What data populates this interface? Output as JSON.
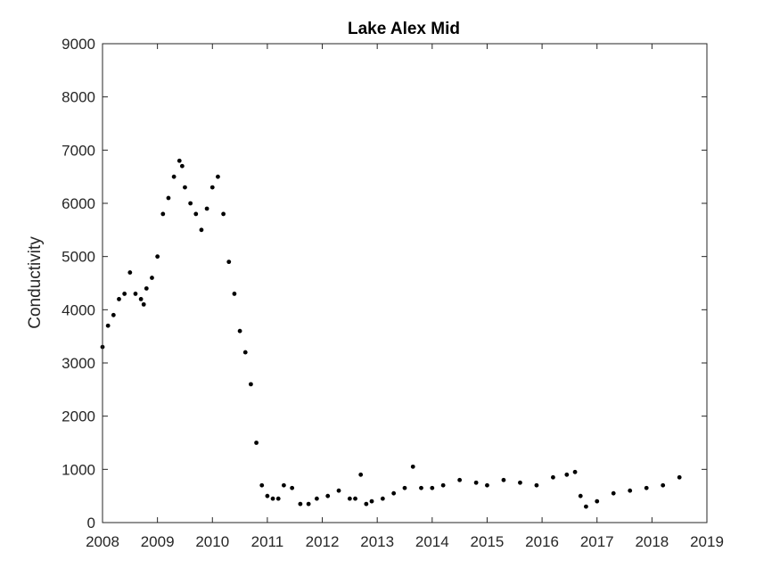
{
  "chart_data": {
    "type": "scatter",
    "title": "Lake Alex Mid",
    "xlabel": "",
    "ylabel": "Conductivity",
    "xlim": [
      2008,
      2019
    ],
    "ylim": [
      0,
      9000
    ],
    "x_ticks": [
      "2008",
      "2009",
      "2010",
      "2011",
      "2012",
      "2013",
      "2014",
      "2015",
      "2016",
      "2017",
      "2018",
      "2019"
    ],
    "y_ticks": [
      "0",
      "1000",
      "2000",
      "3000",
      "4000",
      "5000",
      "6000",
      "7000",
      "8000",
      "9000"
    ],
    "grid": false,
    "marker_color": "#000000",
    "series": [
      {
        "x": [
          2008.0,
          2008.1,
          2008.2,
          2008.3,
          2008.4,
          2008.5,
          2008.6,
          2008.7,
          2008.75,
          2008.8,
          2008.9,
          2009.0,
          2009.1,
          2009.2,
          2009.3,
          2009.4,
          2009.45,
          2009.5,
          2009.6,
          2009.7,
          2009.8,
          2009.9,
          2010.0,
          2010.1,
          2010.2,
          2010.3,
          2010.4,
          2010.5,
          2010.6,
          2010.7,
          2010.8,
          2010.9,
          2011.0,
          2011.1,
          2011.2,
          2011.3,
          2011.45,
          2011.6,
          2011.75,
          2011.9,
          2012.1,
          2012.3,
          2012.5,
          2012.6,
          2012.7,
          2012.8,
          2012.9,
          2013.1,
          2013.3,
          2013.5,
          2013.65,
          2013.8,
          2014.0,
          2014.2,
          2014.5,
          2014.8,
          2015.0,
          2015.3,
          2015.6,
          2015.9,
          2016.2,
          2016.45,
          2016.6,
          2016.7,
          2016.8,
          2017.0,
          2017.3,
          2017.6,
          2017.9,
          2018.2,
          2018.5
        ],
        "y": [
          3300,
          3700,
          3900,
          4200,
          4300,
          4700,
          4300,
          4200,
          4100,
          4400,
          4600,
          5000,
          5800,
          6100,
          6500,
          6800,
          6700,
          6300,
          6000,
          5800,
          5500,
          5900,
          6300,
          6500,
          5800,
          4900,
          4300,
          3600,
          3200,
          2600,
          1500,
          700,
          500,
          450,
          450,
          700,
          650,
          350,
          350,
          450,
          500,
          600,
          450,
          450,
          900,
          350,
          400,
          450,
          550,
          650,
          1050,
          650,
          650,
          700,
          800,
          750,
          700,
          800,
          750,
          700,
          850,
          900,
          950,
          500,
          300,
          400,
          550,
          600,
          650,
          700,
          850
        ]
      }
    ]
  }
}
